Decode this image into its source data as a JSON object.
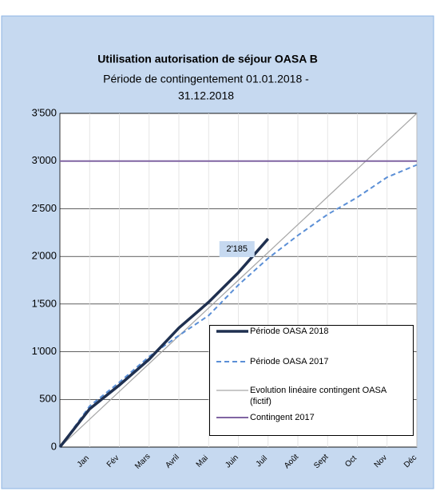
{
  "chart_data": {
    "type": "line",
    "title": "Utilisation autorisation de séjour OASA B",
    "subtitle": [
      "Période de contingentement 01.01.2018 -",
      "31.12.2018"
    ],
    "categories": [
      null,
      "Jan",
      "Fév",
      "Mars",
      "Avril",
      "Mai",
      "Juin",
      "Juil",
      "Août",
      "Sept",
      "Oct",
      "Nov",
      "Déc"
    ],
    "series": [
      {
        "name": "Période OASA 2018",
        "color": "#1f3050",
        "dash": false,
        "width": 3.5,
        "values": [
          0,
          400,
          650,
          920,
          1250,
          1520,
          1830,
          2185,
          null,
          null,
          null,
          null,
          null
        ],
        "value_labels": [
          null,
          null,
          null,
          null,
          null,
          null,
          null,
          "2'185",
          null,
          null,
          null,
          null,
          null
        ]
      },
      {
        "name": "Période OASA 2017",
        "color": "#5b8fd6",
        "dash": true,
        "width": 2,
        "values": [
          0,
          430,
          680,
          950,
          1170,
          1380,
          1700,
          1980,
          2220,
          2440,
          2620,
          2830,
          2960
        ]
      },
      {
        "name": "Evolution linéaire contingent OASA (fictif)",
        "color": "#a6a6a6",
        "dash": false,
        "width": 1.2,
        "values": [
          0,
          292,
          583,
          875,
          1167,
          1458,
          1750,
          2042,
          2333,
          2625,
          2917,
          3208,
          3500
        ]
      },
      {
        "name": "Contingent 2017",
        "color": "#8064a2",
        "dash": false,
        "width": 2,
        "values": [
          3000,
          3000,
          3000,
          3000,
          3000,
          3000,
          3000,
          3000,
          3000,
          3000,
          3000,
          3000,
          3000
        ]
      }
    ],
    "ylim": [
      0,
      3500
    ],
    "yticks": [
      0,
      500,
      {
        "value": 1000,
        "label": "1'000"
      },
      {
        "value": 1500,
        "label": "1'500"
      },
      {
        "value": 2000,
        "label": "2'000"
      },
      {
        "value": 2500,
        "label": "2'500"
      },
      {
        "value": 3000,
        "label": "3'000"
      },
      {
        "value": 3500,
        "label": "3'500"
      }
    ],
    "grid": true
  }
}
